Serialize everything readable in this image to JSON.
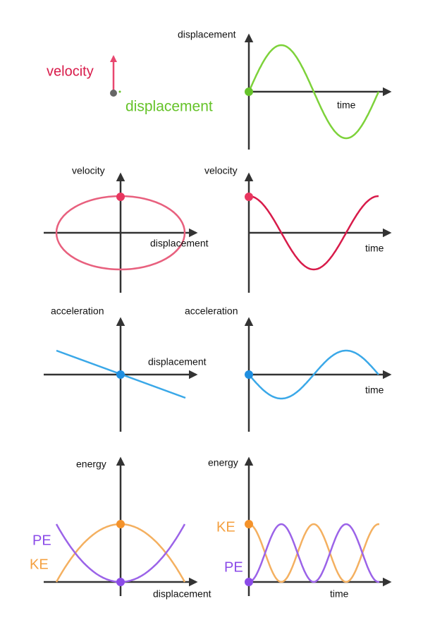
{
  "legend": {
    "velocity": "velocity",
    "displacement": "displacement"
  },
  "panels": [
    {
      "y_label": "displacement",
      "x_label": "time"
    },
    {
      "y_label": "velocity",
      "x_label": "displacement"
    },
    {
      "y_label": "velocity",
      "x_label": "time"
    },
    {
      "y_label": "acceleration",
      "x_label": "displacement"
    },
    {
      "y_label": "acceleration",
      "x_label": "time"
    },
    {
      "y_label": "energy",
      "x_label": "displacement",
      "series_labels": [
        "PE",
        "KE"
      ]
    },
    {
      "y_label": "energy",
      "x_label": "time",
      "series_labels": [
        "KE",
        "PE"
      ]
    }
  ]
}
